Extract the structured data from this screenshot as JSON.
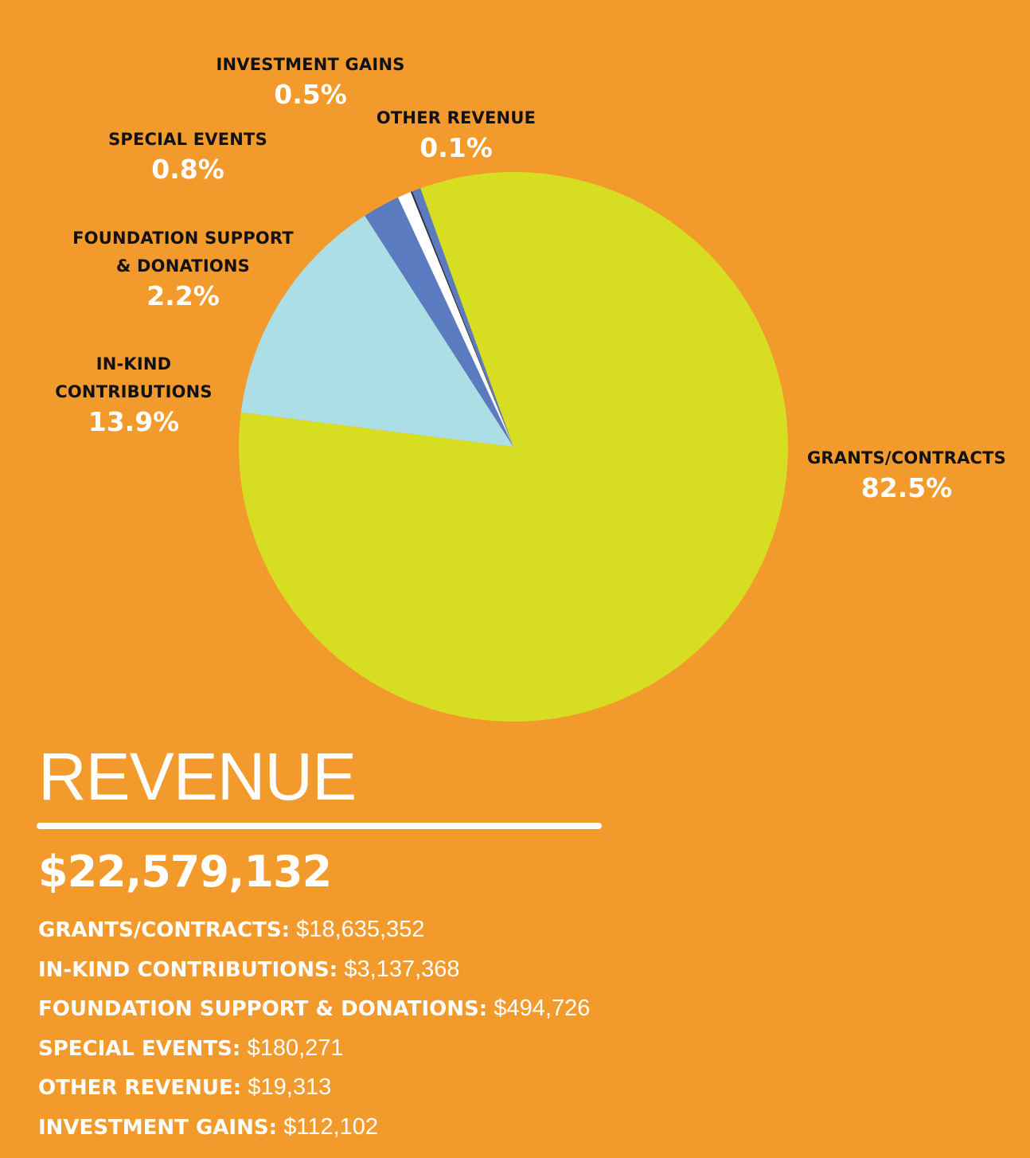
{
  "chart_data": {
    "type": "pie",
    "title": "REVENUE",
    "total": "$22,579,132",
    "slices": [
      {
        "key": "grants",
        "label": "GRANTS/CONTRACTS",
        "percent": 82.5,
        "pct_text": "82.5%",
        "amount": "$18,635,352",
        "color": "#D7DE22"
      },
      {
        "key": "inkind",
        "label": "IN-KIND CONTRIBUTIONS",
        "label_lines": [
          "IN-KIND",
          "CONTRIBUTIONS"
        ],
        "percent": 13.9,
        "pct_text": "13.9%",
        "amount": "$3,137,368",
        "color": "#ABDFE5"
      },
      {
        "key": "foundation",
        "label": "FOUNDATION SUPPORT & DONATIONS",
        "label_lines": [
          "FOUNDATION SUPPORT",
          "& DONATIONS"
        ],
        "percent": 2.2,
        "pct_text": "2.2%",
        "amount": "$494,726",
        "color": "#5A7BBF"
      },
      {
        "key": "special",
        "label": "SPECIAL EVENTS",
        "percent": 0.8,
        "pct_text": "0.8%",
        "amount": "$180,271",
        "color": "#FFFFFF"
      },
      {
        "key": "other",
        "label": "OTHER REVENUE",
        "percent": 0.1,
        "pct_text": "0.1%",
        "amount": "$19,313",
        "color": "#2E2A4A"
      },
      {
        "key": "investment",
        "label": "INVESTMENT GAINS",
        "percent": 0.5,
        "pct_text": "0.5%",
        "amount": "$112,102",
        "color": "#5A7BBF"
      }
    ]
  },
  "list": [
    {
      "label": "GRANTS/CONTRACTS:",
      "value": "$18,635,352"
    },
    {
      "label": "IN-KIND CONTRIBUTIONS:",
      "value": "$3,137,368"
    },
    {
      "label": "FOUNDATION SUPPORT & DONATIONS:",
      "value": "$494,726"
    },
    {
      "label": "SPECIAL EVENTS:",
      "value": "$180,271"
    },
    {
      "label": "OTHER REVENUE:",
      "value": "$19,313"
    },
    {
      "label": "INVESTMENT GAINS:",
      "value": "$112,102"
    }
  ],
  "colors": {
    "background": "#F29A2B",
    "text_dark": "#111111",
    "text_light": "#FFFFFF"
  }
}
